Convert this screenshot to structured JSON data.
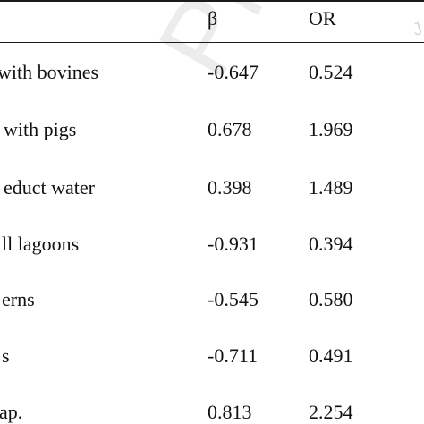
{
  "table": {
    "headers": {
      "beta": "β",
      "or": "OR"
    },
    "rows": [
      {
        "label": "with bovines",
        "beta": "-0.647",
        "or": "0.524"
      },
      {
        "label": "with pigs",
        "beta": "0.678",
        "or": "1.969"
      },
      {
        "label": "educt water",
        "beta": "0.398",
        "or": "1.489"
      },
      {
        "label": "ll lagoons",
        "beta": "-0.931",
        "or": "0.394"
      },
      {
        "label": "erns",
        "beta": "-0.545",
        "or": "0.580"
      },
      {
        "label": "s",
        "beta": "-0.711",
        "or": "0.491"
      },
      {
        "label": "ap.",
        "beta": "0.813",
        "or": "2.254"
      }
    ]
  },
  "watermark": {
    "text": "Pre-proo",
    "corner": "J"
  }
}
